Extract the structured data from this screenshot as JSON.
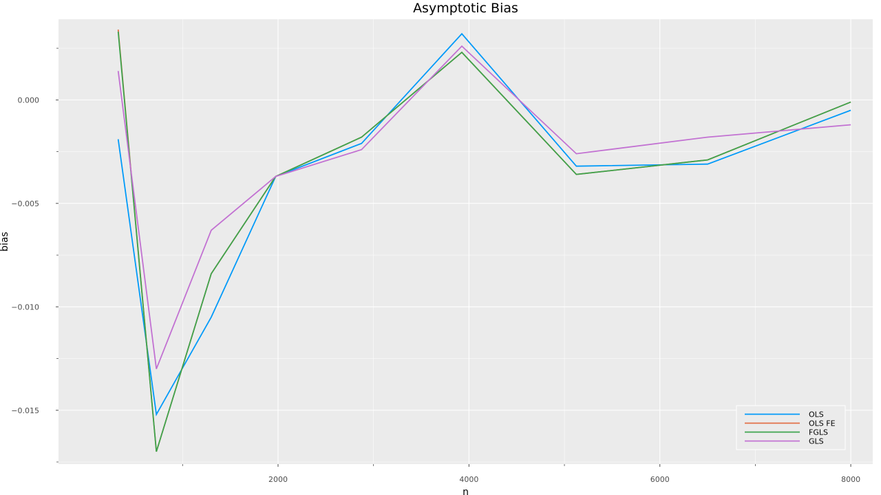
{
  "chart_data": {
    "type": "line",
    "title": "Asymptotic Bias",
    "xlabel": "n",
    "ylabel": "bias",
    "xlim": [
      -300,
      8230
    ],
    "ylim": [
      -0.0176,
      0.0039
    ],
    "x_ticks": [
      2000,
      4000,
      6000,
      8000
    ],
    "x_tick_labels": [
      "2000",
      "4000",
      "6000",
      "8000"
    ],
    "x_minor_ticks": [
      1000,
      3000,
      5000,
      7000
    ],
    "y_ticks": [
      0.0,
      -0.005,
      -0.01,
      -0.015
    ],
    "y_tick_labels": [
      "0.000",
      "−0.005",
      "−0.010",
      "−0.015"
    ],
    "y_minor_ticks": [
      0.0025,
      -0.0025,
      -0.0075,
      -0.0125,
      -0.0175
    ],
    "grid": true,
    "legend_position": "bottom-right",
    "x": [
      325,
      725,
      1300,
      1975,
      2875,
      3925,
      5125,
      6500,
      8000
    ],
    "series": [
      {
        "name": "OLS",
        "color": "#009af9",
        "values": [
          -0.0019,
          -0.0152,
          -0.0105,
          -0.0037,
          -0.0021,
          0.0032,
          -0.0032,
          -0.0031,
          -0.0005
        ]
      },
      {
        "name": "OLS FE",
        "color": "#e26f46",
        "values": [
          0.0034,
          -0.017,
          -0.0084,
          -0.0037,
          -0.0018,
          0.0023,
          -0.0036,
          -0.0029,
          -0.0001
        ]
      },
      {
        "name": "FGLS",
        "color": "#3da44d",
        "values": [
          0.0033,
          -0.017,
          -0.0084,
          -0.0037,
          -0.0018,
          0.0023,
          -0.0036,
          -0.0029,
          -0.0001
        ]
      },
      {
        "name": "GLS",
        "color": "#c271d2",
        "values": [
          0.0014,
          -0.013,
          -0.0063,
          -0.0037,
          -0.0024,
          0.0026,
          -0.0026,
          -0.0018,
          -0.0012
        ]
      }
    ]
  },
  "style": {
    "panel_background": "#ebebeb",
    "grid_color": "#ffffff"
  }
}
